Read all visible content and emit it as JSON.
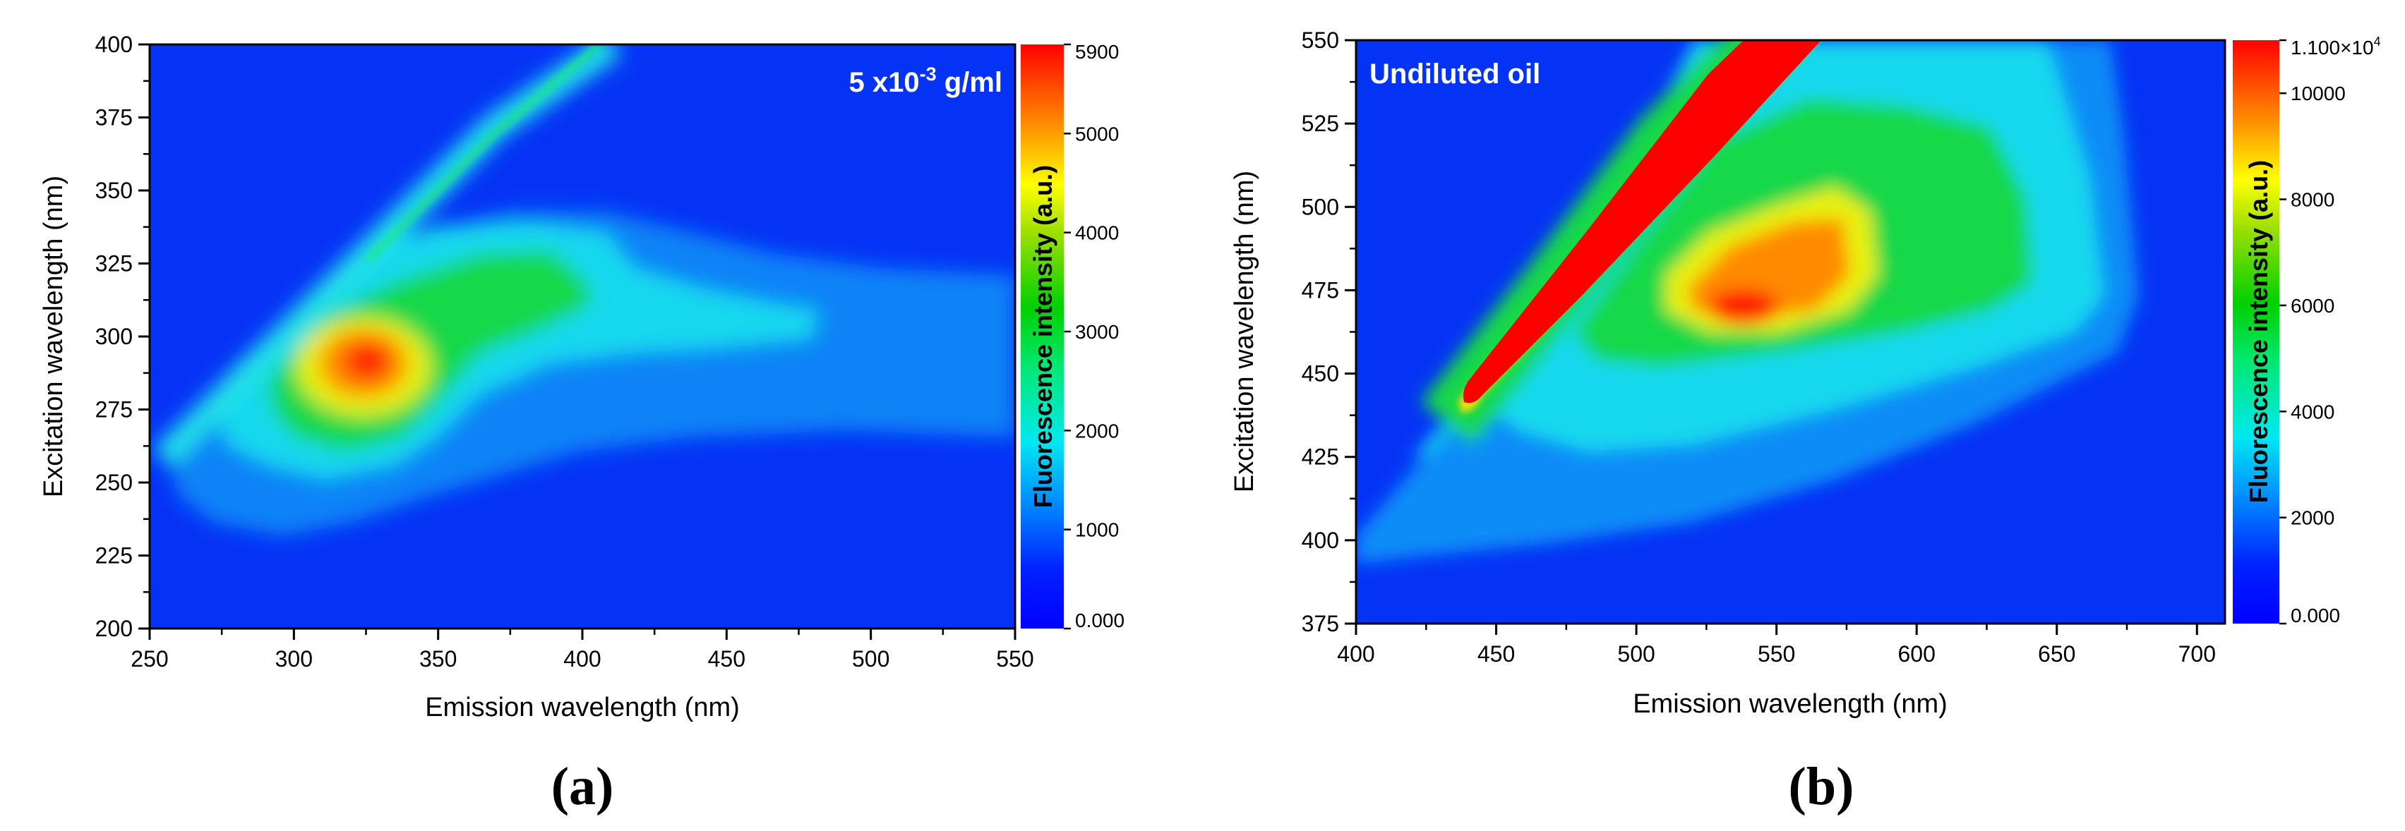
{
  "chart_data": [
    {
      "type": "heatmap",
      "panel_label": "(a)",
      "annotation": "5 x10",
      "annotation_exp": "-3",
      "annotation_unit": " g/ml",
      "xlabel": "Emission wavelength (nm)",
      "ylabel": "Excitation wavelength (nm)",
      "colorbar_label": "Fluorescence intensity (a.u.)",
      "xlim": [
        250,
        550
      ],
      "ylim": [
        200,
        400
      ],
      "xticks": [
        250,
        300,
        350,
        400,
        450,
        500,
        550
      ],
      "yticks": [
        200,
        225,
        250,
        275,
        300,
        325,
        350,
        375,
        400
      ],
      "colorbar_range": [
        0,
        5900
      ],
      "colorbar_ticks": [
        "0.000",
        "1000",
        "2000",
        "3000",
        "4000",
        "5000",
        "5900"
      ],
      "colorbar_tick_values": [
        0,
        1000,
        2000,
        3000,
        4000,
        5000,
        5900
      ],
      "features": [
        {
          "kind": "peak",
          "x": 327,
          "y": 290,
          "intensity": 5900
        },
        {
          "kind": "scatter_line",
          "x_start": 255,
          "y_start": 257,
          "x_end": 398,
          "y_end": 400,
          "intensity": 1800
        }
      ]
    },
    {
      "type": "heatmap",
      "panel_label": "(b)",
      "annotation": "Undiluted oil",
      "xlabel": "Emission wavelength (nm)",
      "ylabel": "Excitation wavelength (nm)",
      "colorbar_label": "Fluorescence intensity (a.u.)",
      "xlim": [
        400,
        710
      ],
      "ylim": [
        375,
        550
      ],
      "xticks": [
        400,
        450,
        500,
        550,
        600,
        650,
        700
      ],
      "yticks": [
        375,
        400,
        425,
        450,
        475,
        500,
        525,
        550
      ],
      "colorbar_range": [
        0,
        11000
      ],
      "colorbar_ticks": [
        "0.000",
        "2000",
        "4000",
        "6000",
        "8000",
        "10000",
        "1.100×10"
      ],
      "colorbar_top_exp": "4",
      "colorbar_tick_values": [
        0,
        2000,
        4000,
        6000,
        8000,
        10000,
        11000
      ],
      "features": [
        {
          "kind": "peak",
          "x": 532,
          "y": 470,
          "intensity": 10000
        },
        {
          "kind": "scatter_line",
          "x_start": 430,
          "y_start": 428,
          "x_end": 580,
          "y_end": 555,
          "intensity": 11000
        }
      ]
    }
  ]
}
